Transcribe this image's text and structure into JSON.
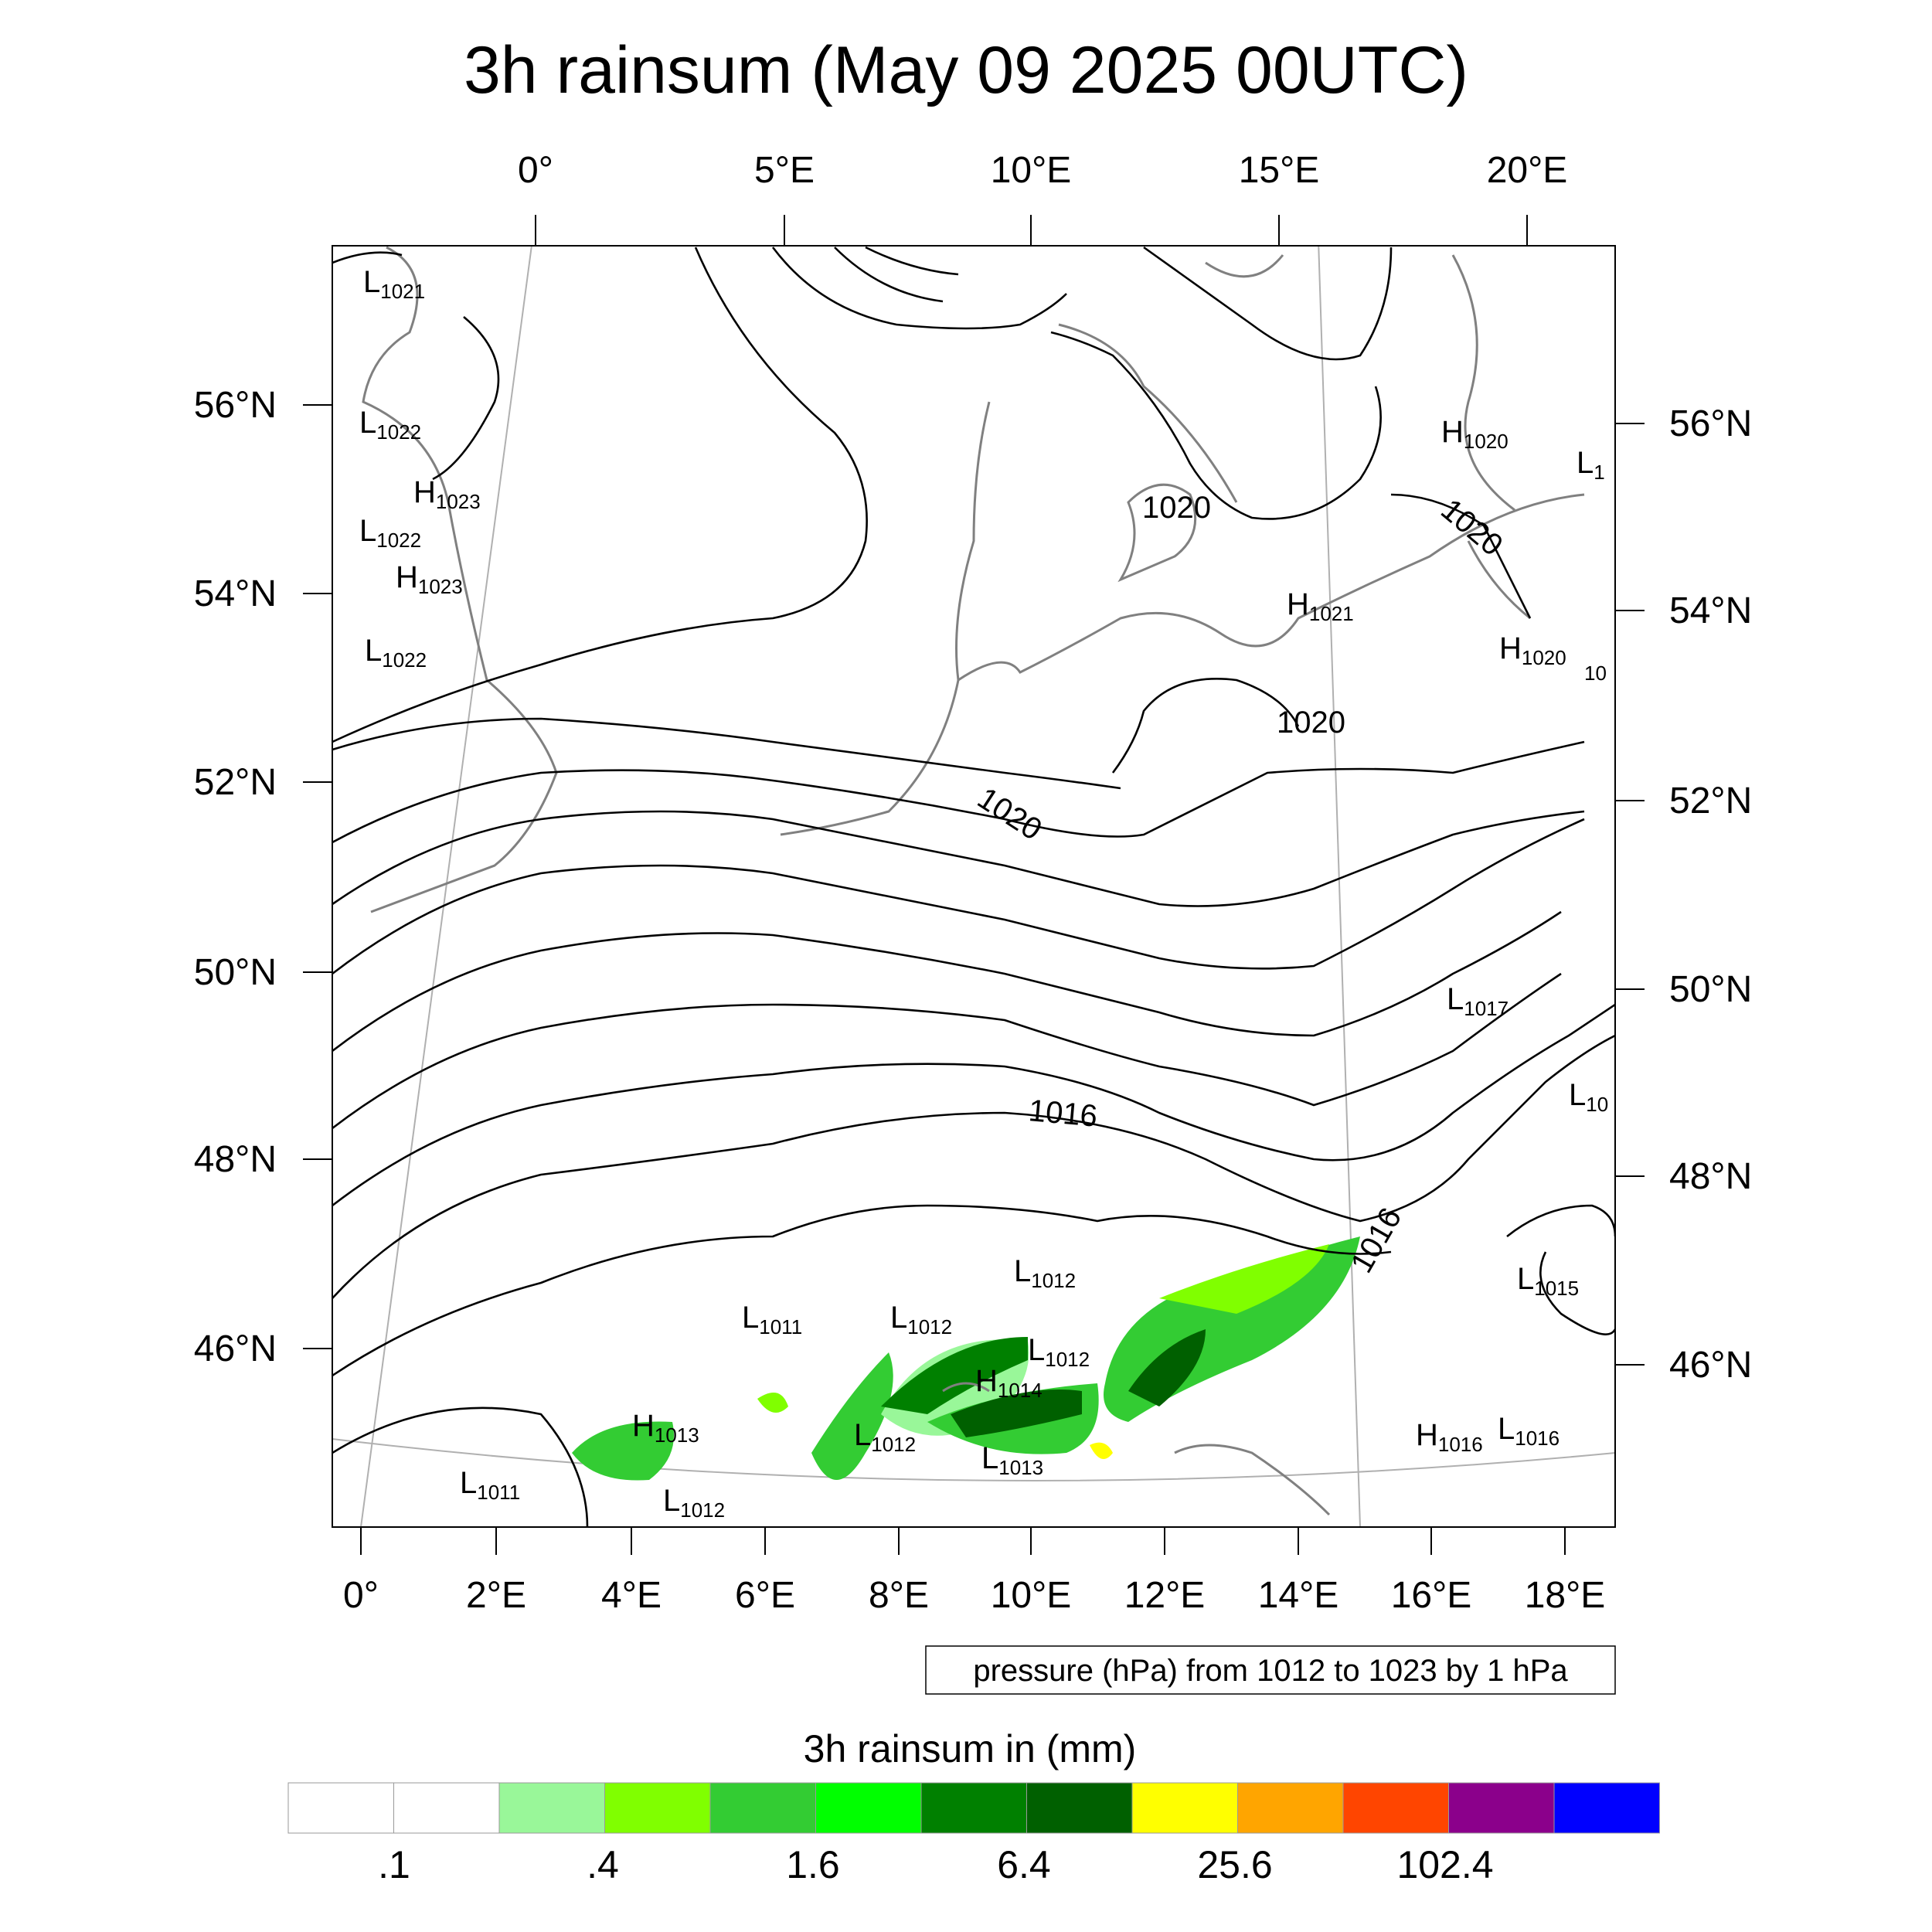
{
  "title": "3h rainsum (May 09 2025 00UTC)",
  "top_lon_ticks": [
    "0°",
    "5°E",
    "10°E",
    "15°E",
    "20°E"
  ],
  "bottom_lon_ticks": [
    "0°",
    "2°E",
    "4°E",
    "6°E",
    "8°E",
    "10°E",
    "12°E",
    "14°E",
    "16°E",
    "18°E"
  ],
  "left_lat_ticks": [
    "56°N",
    "54°N",
    "52°N",
    "50°N",
    "48°N",
    "46°N"
  ],
  "right_lat_ticks": [
    "56°N",
    "54°N",
    "52°N",
    "50°N",
    "48°N",
    "46°N"
  ],
  "contour_note": "pressure (hPa) from 1012 to 1023 by 1 hPa",
  "colorbar": {
    "title": "3h rainsum in (mm)",
    "colors": [
      "#ffffff",
      "#ffffff",
      "#99f799",
      "#80ff00",
      "#33cc33",
      "#00ff00",
      "#008000",
      "#006000",
      "#ffff00",
      "#ffa500",
      "#ff4500",
      "#8b008b",
      "#0000ff"
    ],
    "labels": [
      ".1",
      ".4",
      "1.6",
      "6.4",
      "25.6",
      "102.4"
    ]
  },
  "pressure_systems": [
    {
      "type": "L",
      "value": "1021"
    },
    {
      "type": "L",
      "value": "1022"
    },
    {
      "type": "H",
      "value": "1023"
    },
    {
      "type": "L",
      "value": "1022"
    },
    {
      "type": "H",
      "value": "1023"
    },
    {
      "type": "L",
      "value": "1022"
    },
    {
      "type": "H",
      "value": "1020"
    },
    {
      "type": "L",
      "value": "1"
    },
    {
      "type": "H",
      "value": "1021"
    },
    {
      "type": "H",
      "value": "1020"
    },
    {
      "type": "",
      "value": "10"
    },
    {
      "type": "L",
      "value": "1017"
    },
    {
      "type": "L",
      "value": "10"
    },
    {
      "type": "L",
      "value": "1012"
    },
    {
      "type": "L",
      "value": "1011"
    },
    {
      "type": "L",
      "value": "1012"
    },
    {
      "type": "L",
      "value": "1012"
    },
    {
      "type": "H",
      "value": "1014"
    },
    {
      "type": "L",
      "value": "1015"
    },
    {
      "type": "H",
      "value": "1013"
    },
    {
      "type": "L",
      "value": "1012"
    },
    {
      "type": "L",
      "value": "1013"
    },
    {
      "type": "H",
      "value": "1016"
    },
    {
      "type": "L",
      "value": "1016"
    },
    {
      "type": "L",
      "value": "1011"
    },
    {
      "type": "L",
      "value": "1012"
    }
  ],
  "contour_labels": [
    "1020",
    "1020",
    "1020",
    "1020",
    "1016",
    "1016"
  ]
}
